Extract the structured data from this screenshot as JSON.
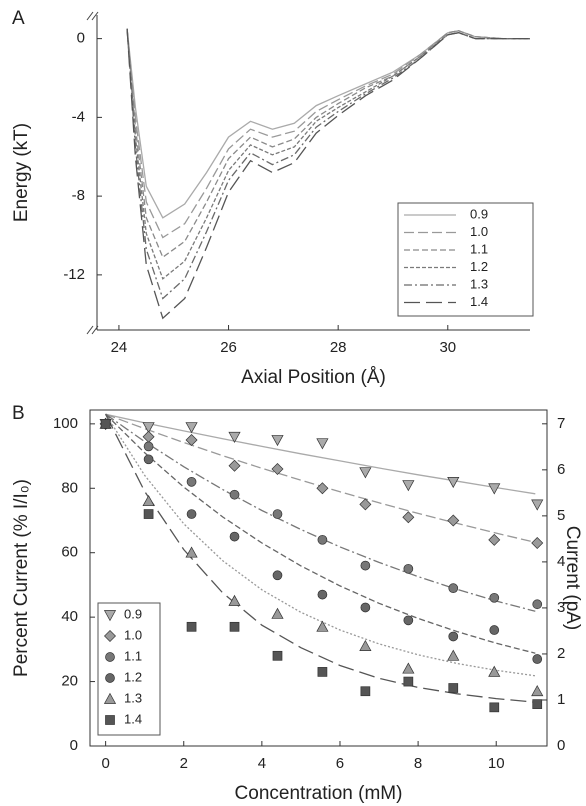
{
  "chart_data": [
    {
      "type": "line",
      "panel_label": "A",
      "y_label": "Energy (kT)",
      "x_label": "Axial Position (Å)",
      "xlim": [
        23.6,
        31.5
      ],
      "ylim": [
        -14.8,
        1.2
      ],
      "xticks": [
        24,
        26,
        28,
        30
      ],
      "yticks": [
        0,
        -4,
        -8,
        -12
      ],
      "x": [
        24.15,
        24.3,
        24.5,
        24.8,
        25.2,
        25.6,
        26.0,
        26.4,
        26.8,
        27.2,
        27.6,
        28.0,
        28.5,
        29.0,
        29.5,
        30.0,
        30.2,
        30.5,
        31.0,
        31.5
      ],
      "series": [
        {
          "name": "0.9",
          "color": "#aaaaaa",
          "dash": "none",
          "values": [
            0.5,
            -3.5,
            -7.5,
            -9.1,
            -8.4,
            -6.8,
            -5.0,
            -4.2,
            -4.6,
            -4.3,
            -3.4,
            -2.9,
            -2.3,
            -1.7,
            -0.8,
            0.3,
            0.4,
            0.1,
            0,
            0
          ]
        },
        {
          "name": "1.0",
          "color": "#999999",
          "dash": "10,4",
          "values": [
            0.5,
            -4.0,
            -8.3,
            -10.1,
            -9.4,
            -7.6,
            -5.6,
            -4.6,
            -5.0,
            -4.7,
            -3.7,
            -3.1,
            -2.4,
            -1.8,
            -0.8,
            0.3,
            0.4,
            0.1,
            0,
            0
          ]
        },
        {
          "name": "1.1",
          "color": "#8a8a8a",
          "dash": "6,3",
          "values": [
            0.5,
            -4.5,
            -9.1,
            -11.1,
            -10.3,
            -8.3,
            -6.1,
            -5.0,
            -5.5,
            -5.1,
            -4.0,
            -3.3,
            -2.5,
            -1.9,
            -0.9,
            0.3,
            0.4,
            0.1,
            0,
            0
          ]
        },
        {
          "name": "1.2",
          "color": "#7a7a7a",
          "dash": "4,2",
          "values": [
            0.5,
            -5.0,
            -9.9,
            -12.2,
            -11.3,
            -9.1,
            -6.7,
            -5.4,
            -5.9,
            -5.5,
            -4.2,
            -3.5,
            -2.7,
            -1.9,
            -0.9,
            0.2,
            0.3,
            0.0,
            0,
            0
          ]
        },
        {
          "name": "1.3",
          "color": "#6a6a6a",
          "dash": "8,3,2,3",
          "values": [
            0.5,
            -5.5,
            -10.7,
            -13.2,
            -12.2,
            -9.8,
            -7.2,
            -5.8,
            -6.4,
            -5.9,
            -4.5,
            -3.7,
            -2.8,
            -2.0,
            -1.0,
            0.2,
            0.3,
            0.0,
            0,
            0
          ]
        },
        {
          "name": "1.4",
          "color": "#555555",
          "dash": "16,6",
          "values": [
            0.5,
            -6.0,
            -11.5,
            -14.2,
            -13.2,
            -10.6,
            -7.8,
            -6.2,
            -6.8,
            -6.3,
            -4.8,
            -3.9,
            -2.9,
            -2.1,
            -1.0,
            0.2,
            0.3,
            0.0,
            0,
            0
          ]
        }
      ]
    },
    {
      "type": "scatter",
      "panel_label": "B",
      "y_label": "Percent Current (% I/I₀)",
      "y2_label": "Current (pA)",
      "x_label": "Concentration (mM)",
      "xlim": [
        -0.4,
        11.3
      ],
      "ylim": [
        0,
        104.3
      ],
      "y2lim": [
        0,
        7.3
      ],
      "xticks": [
        0,
        2,
        4,
        6,
        8,
        10
      ],
      "yticks": [
        0,
        20,
        40,
        60,
        80,
        100
      ],
      "y2ticks": [
        0,
        1,
        2,
        3,
        4,
        5,
        6,
        7
      ],
      "x": [
        0,
        1.1,
        2.2,
        3.3,
        4.4,
        5.55,
        6.65,
        7.75,
        8.9,
        9.95,
        11.05
      ],
      "fit_x": [
        0,
        1,
        2,
        3,
        4,
        5,
        6,
        7,
        8,
        9,
        10,
        11
      ],
      "series": [
        {
          "name": "0.9",
          "color": "#aaaaaa",
          "marker": "triangle-down",
          "dash": "none",
          "values": [
            100,
            99,
            99,
            96,
            95,
            94,
            85,
            81,
            82,
            80,
            75
          ],
          "fit": [
            103,
            100.3,
            97.8,
            95.4,
            93.0,
            90.7,
            88.5,
            86.3,
            84.2,
            82.2,
            80.2,
            78.3
          ]
        },
        {
          "name": "1.0",
          "color": "#999999",
          "marker": "diamond",
          "dash": "10,4",
          "values": [
            100,
            96,
            95,
            87,
            86,
            80,
            75,
            71,
            70,
            64,
            63
          ],
          "fit": [
            103,
            98.5,
            94.2,
            90.1,
            86.2,
            82.5,
            78.9,
            75.5,
            72.2,
            69.1,
            66.1,
            63.2
          ]
        },
        {
          "name": "1.1",
          "color": "#777777",
          "marker": "circle",
          "dash": "10,3,2,3",
          "values": [
            100,
            93,
            82,
            78,
            72,
            64,
            56,
            55,
            49,
            46,
            44
          ],
          "fit": [
            103,
            94.5,
            86.7,
            79.6,
            73.1,
            67.2,
            61.8,
            57,
            52.6,
            48.6,
            45,
            41.8
          ]
        },
        {
          "name": "1.2",
          "color": "#666666",
          "marker": "circle",
          "dash": "6,3",
          "values": [
            100,
            89,
            72,
            65,
            53,
            47,
            43,
            39,
            34,
            36,
            27
          ],
          "fit": [
            103,
            91,
            80.4,
            71.1,
            63.0,
            55.9,
            49.7,
            44.3,
            39.6,
            35.5,
            31.9,
            28.8
          ]
        },
        {
          "name": "1.3",
          "color": "#999999",
          "marker": "triangle-up",
          "dash": "2,2",
          "values": [
            100,
            76,
            60,
            45,
            41,
            37,
            31,
            24,
            28,
            23,
            17
          ],
          "fit": [
            103,
            84,
            69,
            57.5,
            48.5,
            41.5,
            36,
            31.7,
            28.3,
            25.6,
            23.5,
            21.8
          ]
        },
        {
          "name": "1.4",
          "color": "#555555",
          "marker": "square",
          "dash": "16,6",
          "values": [
            100,
            72,
            37,
            37,
            28,
            23,
            17,
            20,
            18,
            12,
            13
          ],
          "fit": [
            103,
            79,
            61,
            47.5,
            37.5,
            30.5,
            25,
            21,
            18.2,
            16.2,
            14.7,
            13.6
          ]
        }
      ]
    }
  ]
}
